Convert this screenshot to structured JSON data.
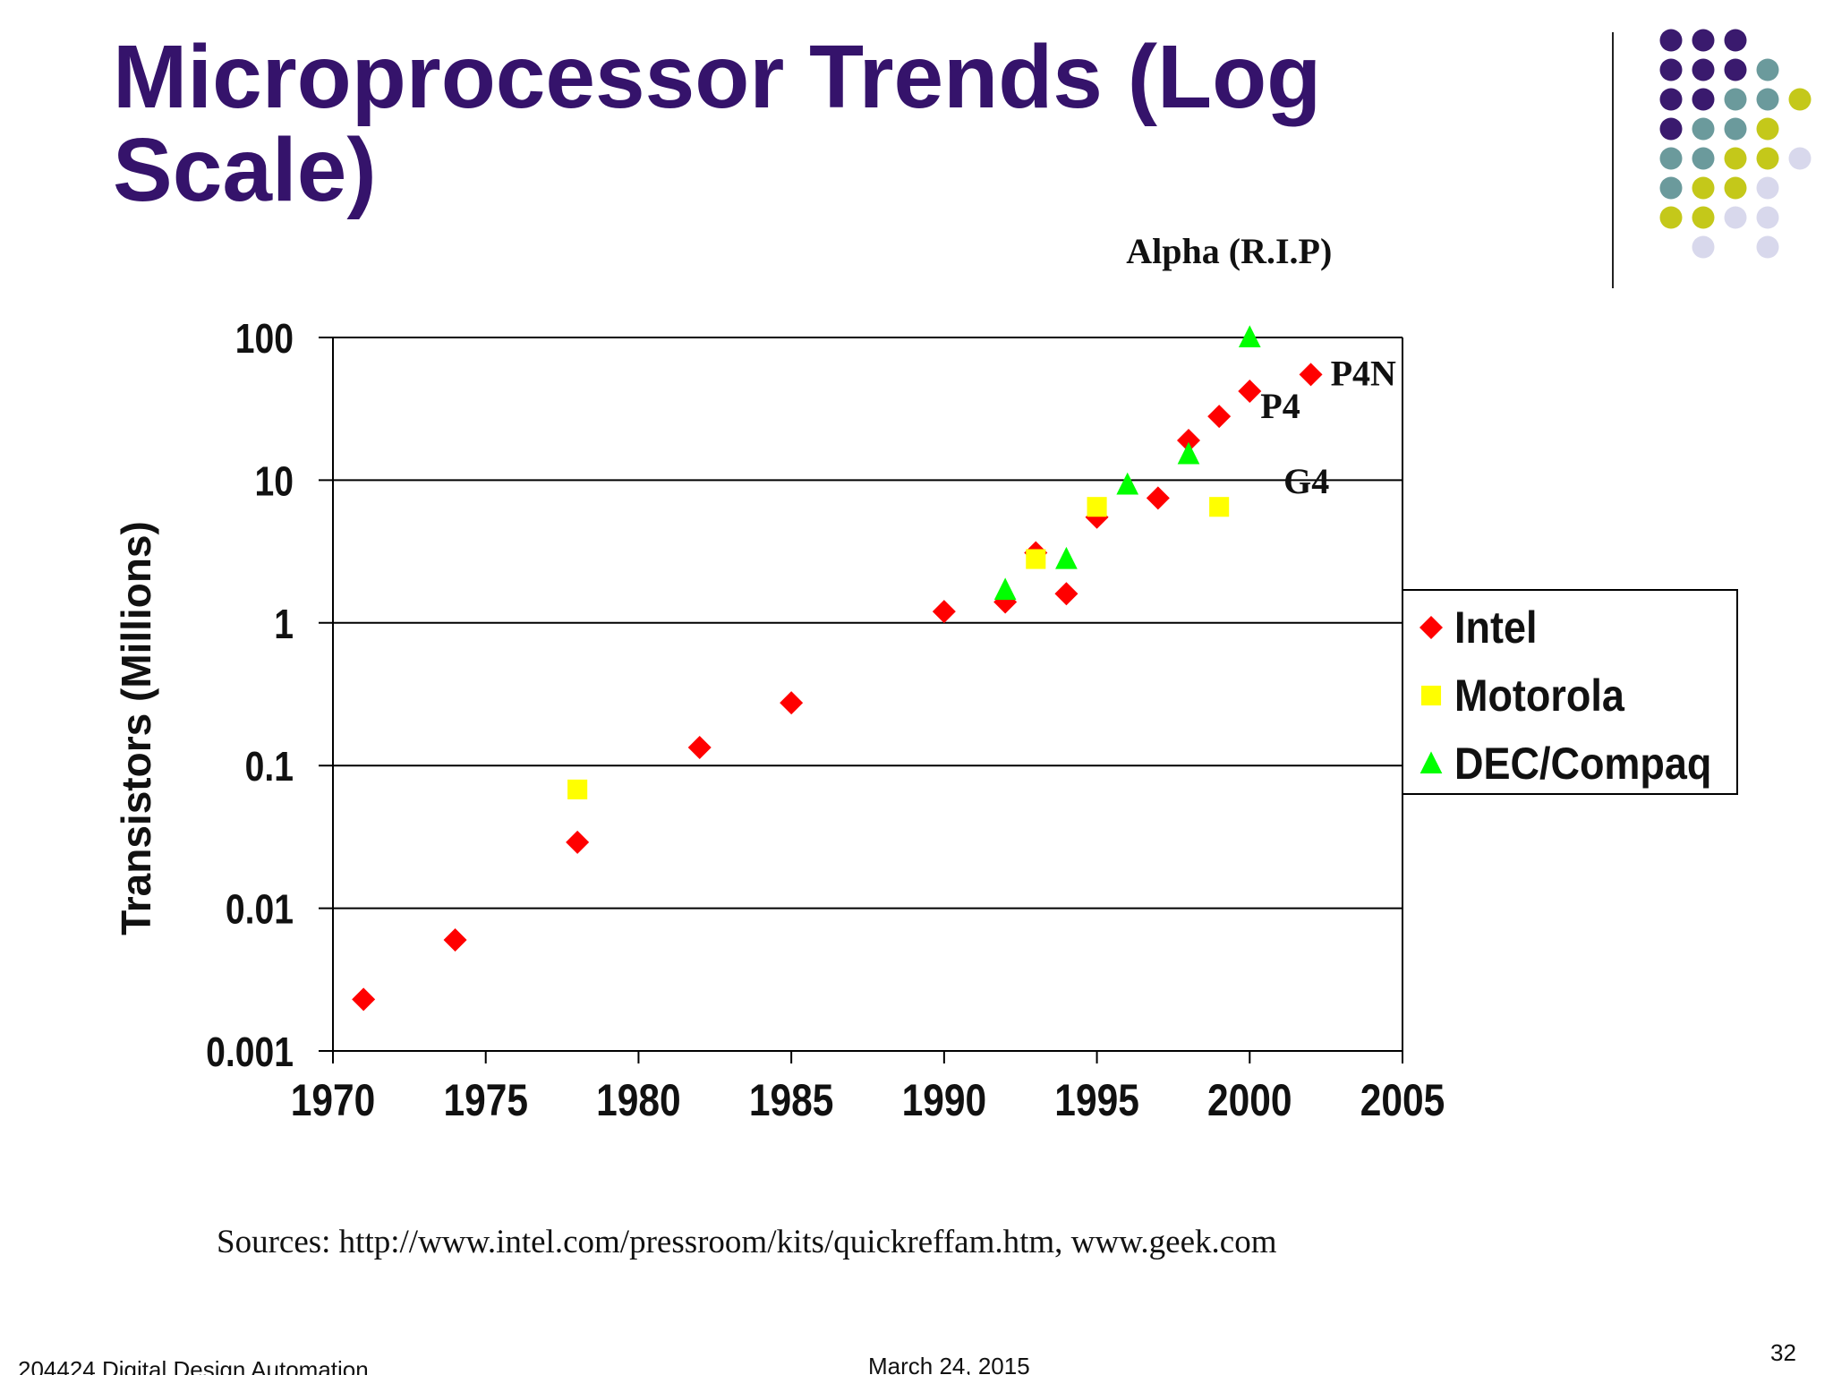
{
  "slide": {
    "title": "Microprocessor Trends (Log Scale)",
    "sources": "Sources: http://www.intel.com/pressroom/kits/quickreffam.htm, www.geek.com",
    "footer_left": "204424 Digital Design Automation",
    "footer_center": "March 24, 2015",
    "page_number": "32",
    "decor_colors": [
      "#3a1a6e",
      "#6b9a9c",
      "#c4c81a",
      "#d8d8ec"
    ]
  },
  "chart_data": {
    "type": "scatter",
    "title": "",
    "ylabel": "Transistors (Millions)",
    "xlabel": "",
    "x_scale": "linear",
    "y_scale": "log",
    "xlim": [
      1970,
      2005
    ],
    "ylim": [
      0.001,
      100
    ],
    "x_ticks": [
      "1970",
      "1975",
      "1980",
      "1985",
      "1990",
      "1995",
      "2000",
      "2005"
    ],
    "y_ticks": [
      "0.001",
      "0.01",
      "0.1",
      "1",
      "10",
      "100"
    ],
    "grid": "horizontal",
    "legend_position": "right",
    "series": [
      {
        "name": "Intel",
        "marker": "diamond",
        "color": "#ff0000",
        "points": [
          [
            1971,
            0.0023
          ],
          [
            1974,
            0.006
          ],
          [
            1978,
            0.029
          ],
          [
            1982,
            0.134
          ],
          [
            1985,
            0.275
          ],
          [
            1990,
            1.2
          ],
          [
            1992,
            1.4
          ],
          [
            1993,
            3.1
          ],
          [
            1994,
            1.6
          ],
          [
            1995,
            5.5
          ],
          [
            1997,
            7.5
          ],
          [
            1998,
            19
          ],
          [
            1999,
            28
          ],
          [
            2000,
            42
          ],
          [
            2002,
            55
          ]
        ]
      },
      {
        "name": "Motorola",
        "marker": "square",
        "color": "#ffff00",
        "points": [
          [
            1978,
            0.068
          ],
          [
            1993,
            2.8
          ],
          [
            1995,
            6.5
          ],
          [
            1999,
            6.5
          ]
        ]
      },
      {
        "name": "DEC/Compaq",
        "marker": "triangle",
        "color": "#00ff00",
        "points": [
          [
            1992,
            1.7
          ],
          [
            1994,
            2.8
          ],
          [
            1996,
            9.3
          ],
          [
            1998,
            15.2
          ],
          [
            2000,
            100
          ]
        ]
      }
    ],
    "annotations": [
      {
        "text": "Alpha (R.I.P)",
        "x": 2000,
        "y": 100
      },
      {
        "text": "P4N",
        "x": 2002,
        "y": 55
      },
      {
        "text": "P4",
        "x": 2000,
        "y": 42
      },
      {
        "text": "G4",
        "x": 1999,
        "y": 6.5
      }
    ]
  }
}
